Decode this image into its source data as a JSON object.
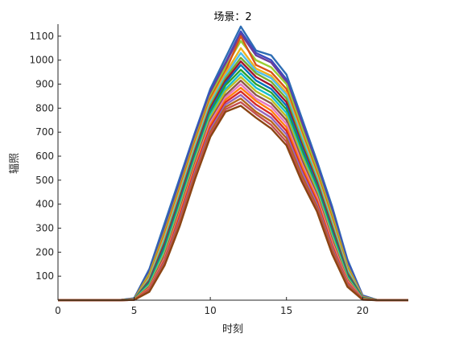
{
  "chart_data": {
    "type": "line",
    "title": "场景：2",
    "xlabel": "时刻",
    "ylabel": "辐照",
    "xlim": [
      0,
      23
    ],
    "ylim": [
      0,
      1150
    ],
    "xticks": [
      0,
      5,
      10,
      15,
      20
    ],
    "yticks": [
      100,
      200,
      300,
      400,
      500,
      600,
      700,
      800,
      900,
      1000,
      1100
    ],
    "x": [
      0,
      1,
      2,
      3,
      4,
      5,
      6,
      7,
      8,
      9,
      10,
      11,
      12,
      13,
      14,
      15,
      16,
      17,
      18,
      19,
      20,
      21,
      22,
      23
    ],
    "series": [
      {
        "color": "#2E6DB4",
        "values": [
          0,
          0,
          0,
          0,
          0,
          8,
          130,
          320,
          510,
          700,
          880,
          1010,
          1140,
          1040,
          1020,
          940,
          760,
          580,
          390,
          170,
          20,
          0,
          0,
          0
        ]
      },
      {
        "color": "#3B4CC0",
        "values": [
          0,
          0,
          0,
          0,
          0,
          6,
          120,
          300,
          495,
          690,
          870,
          990,
          1120,
          1030,
          1000,
          920,
          745,
          565,
          375,
          160,
          18,
          0,
          0,
          0
        ]
      },
      {
        "color": "#6A3D9A",
        "values": [
          0,
          0,
          0,
          0,
          0,
          6,
          115,
          295,
          485,
          680,
          860,
          985,
          1110,
          1020,
          990,
          910,
          735,
          555,
          365,
          150,
          16,
          0,
          0,
          0
        ]
      },
      {
        "color": "#9ACD32",
        "values": [
          0,
          0,
          0,
          0,
          0,
          5,
          110,
          285,
          475,
          670,
          850,
          970,
          1080,
          1000,
          970,
          900,
          720,
          545,
          355,
          145,
          15,
          0,
          0,
          0
        ]
      },
      {
        "color": "#D95319",
        "values": [
          0,
          0,
          0,
          0,
          0,
          5,
          100,
          275,
          465,
          660,
          840,
          955,
          1100,
          980,
          950,
          880,
          700,
          530,
          340,
          135,
          14,
          0,
          0,
          0
        ]
      },
      {
        "color": "#EDB120",
        "values": [
          0,
          0,
          0,
          0,
          0,
          4,
          95,
          265,
          455,
          650,
          830,
          945,
          1050,
          965,
          935,
          865,
          690,
          520,
          330,
          130,
          13,
          0,
          0,
          0
        ]
      },
      {
        "color": "#4DBEEE",
        "values": [
          0,
          0,
          0,
          0,
          0,
          4,
          90,
          255,
          445,
          640,
          820,
          935,
          1030,
          955,
          925,
          855,
          680,
          510,
          320,
          125,
          12,
          0,
          0,
          0
        ]
      },
      {
        "color": "#77AC30",
        "values": [
          0,
          0,
          0,
          0,
          0,
          4,
          85,
          245,
          435,
          630,
          810,
          925,
          1010,
          945,
          910,
          840,
          665,
          500,
          310,
          118,
          11,
          0,
          0,
          0
        ]
      },
      {
        "color": "#A2142F",
        "values": [
          0,
          0,
          0,
          0,
          0,
          3,
          80,
          235,
          425,
          620,
          800,
          915,
          995,
          930,
          895,
          825,
          650,
          490,
          300,
          110,
          10,
          0,
          0,
          0
        ]
      },
      {
        "color": "#0072BD",
        "values": [
          0,
          0,
          0,
          0,
          0,
          3,
          75,
          225,
          415,
          610,
          790,
          905,
          980,
          915,
          880,
          810,
          640,
          480,
          290,
          105,
          9,
          0,
          0,
          0
        ]
      },
      {
        "color": "#2CA02C",
        "values": [
          0,
          0,
          0,
          0,
          0,
          3,
          70,
          215,
          405,
          600,
          780,
          895,
          960,
          900,
          865,
          795,
          625,
          470,
          280,
          100,
          8,
          0,
          0,
          0
        ]
      },
      {
        "color": "#17BECF",
        "values": [
          0,
          0,
          0,
          0,
          0,
          3,
          65,
          205,
          395,
          590,
          770,
          880,
          945,
          885,
          850,
          780,
          610,
          460,
          270,
          95,
          7,
          0,
          0,
          0
        ]
      },
      {
        "color": "#BCBD22",
        "values": [
          0,
          0,
          0,
          0,
          0,
          2,
          60,
          195,
          385,
          580,
          760,
          870,
          930,
          870,
          835,
          765,
          600,
          450,
          260,
          90,
          6,
          0,
          0,
          0
        ]
      },
      {
        "color": "#8C564B",
        "values": [
          0,
          0,
          0,
          0,
          0,
          2,
          55,
          185,
          375,
          570,
          750,
          855,
          915,
          855,
          820,
          750,
          585,
          440,
          250,
          85,
          5,
          0,
          0,
          0
        ]
      },
      {
        "color": "#E377C2",
        "values": [
          0,
          0,
          0,
          0,
          0,
          2,
          50,
          175,
          365,
          560,
          740,
          845,
          900,
          840,
          805,
          735,
          570,
          430,
          240,
          80,
          5,
          0,
          0,
          0
        ]
      },
      {
        "color": "#FF7F0E",
        "values": [
          0,
          0,
          0,
          0,
          0,
          2,
          48,
          170,
          360,
          555,
          730,
          835,
          885,
          830,
          790,
          720,
          560,
          420,
          232,
          76,
          4,
          0,
          0,
          0
        ]
      },
      {
        "color": "#D62728",
        "values": [
          0,
          0,
          0,
          0,
          0,
          1,
          45,
          165,
          350,
          545,
          720,
          825,
          870,
          815,
          775,
          705,
          545,
          410,
          225,
          72,
          4,
          0,
          0,
          0
        ]
      },
      {
        "color": "#9467BD",
        "values": [
          0,
          0,
          0,
          0,
          0,
          1,
          42,
          160,
          340,
          535,
          710,
          815,
          855,
          800,
          760,
          690,
          535,
          400,
          218,
          68,
          3,
          0,
          0,
          0
        ]
      },
      {
        "color": "#B5651D",
        "values": [
          0,
          0,
          0,
          0,
          0,
          1,
          40,
          155,
          330,
          525,
          700,
          805,
          840,
          785,
          745,
          675,
          520,
          390,
          210,
          64,
          3,
          0,
          0,
          0
        ]
      },
      {
        "color": "#C44E52",
        "values": [
          0,
          0,
          0,
          0,
          0,
          1,
          38,
          150,
          320,
          515,
          690,
          795,
          825,
          775,
          730,
          660,
          505,
          380,
          200,
          60,
          2,
          0,
          0,
          0
        ]
      },
      {
        "color": "#8B4513",
        "values": [
          0,
          0,
          0,
          0,
          0,
          1,
          35,
          145,
          310,
          505,
          680,
          785,
          810,
          760,
          715,
          645,
          495,
          370,
          192,
          56,
          2,
          0,
          0,
          0
        ]
      }
    ]
  }
}
